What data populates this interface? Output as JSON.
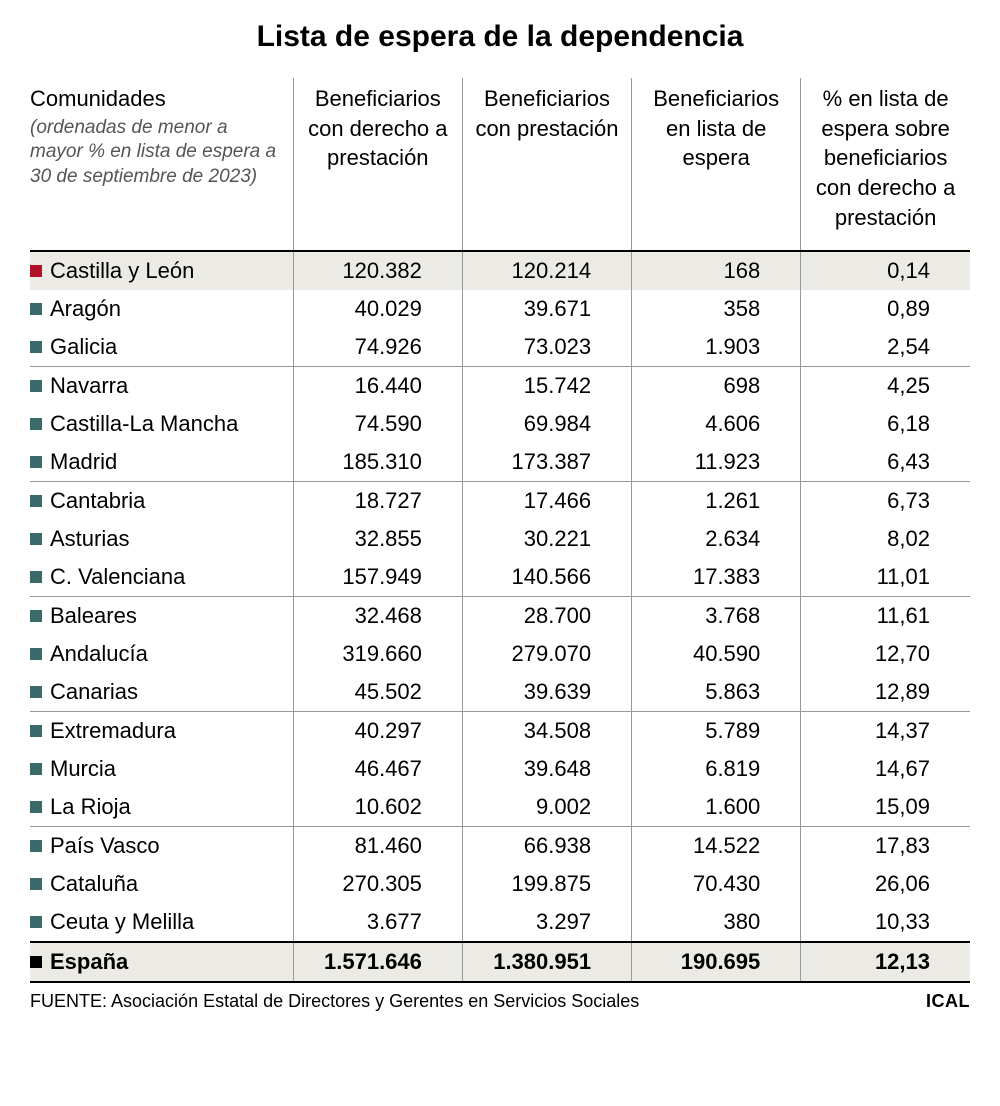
{
  "title": "Lista de espera de la dependencia",
  "columns": {
    "c0_title": "Comunidades",
    "c0_sub": "(ordenadas de menor a mayor % en lista de espera a 30 de septiembre de 2023)",
    "c1": "Beneficiarios con derecho a prestación",
    "c2": "Beneficiarios con prestación",
    "c3": "Beneficiarios en lista de espera",
    "c4": "% en lista de espera sobre beneficiarios con derecho a prestación"
  },
  "marker_colors": {
    "highlight": "#b01028",
    "normal": "#3a6a6a",
    "total": "#000000"
  },
  "rows": [
    {
      "name": "Castilla y León",
      "v1": "120.382",
      "v2": "120.214",
      "v3": "168",
      "v4": "0,14",
      "hl": true,
      "sep": false
    },
    {
      "name": "Aragón",
      "v1": "40.029",
      "v2": "39.671",
      "v3": "358",
      "v4": "0,89",
      "hl": false,
      "sep": false
    },
    {
      "name": "Galicia",
      "v1": "74.926",
      "v2": "73.023",
      "v3": "1.903",
      "v4": "2,54",
      "hl": false,
      "sep": false
    },
    {
      "name": "Navarra",
      "v1": "16.440",
      "v2": "15.742",
      "v3": "698",
      "v4": "4,25",
      "hl": false,
      "sep": true
    },
    {
      "name": "Castilla-La Mancha",
      "v1": "74.590",
      "v2": "69.984",
      "v3": "4.606",
      "v4": "6,18",
      "hl": false,
      "sep": false
    },
    {
      "name": "Madrid",
      "v1": "185.310",
      "v2": "173.387",
      "v3": "11.923",
      "v4": "6,43",
      "hl": false,
      "sep": false
    },
    {
      "name": "Cantabria",
      "v1": "18.727",
      "v2": "17.466",
      "v3": "1.261",
      "v4": "6,73",
      "hl": false,
      "sep": true
    },
    {
      "name": "Asturias",
      "v1": "32.855",
      "v2": "30.221",
      "v3": "2.634",
      "v4": "8,02",
      "hl": false,
      "sep": false
    },
    {
      "name": "C. Valenciana",
      "v1": "157.949",
      "v2": "140.566",
      "v3": "17.383",
      "v4": "11,01",
      "hl": false,
      "sep": false
    },
    {
      "name": "Baleares",
      "v1": "32.468",
      "v2": "28.700",
      "v3": "3.768",
      "v4": "11,61",
      "hl": false,
      "sep": true
    },
    {
      "name": "Andalucía",
      "v1": "319.660",
      "v2": "279.070",
      "v3": "40.590",
      "v4": "12,70",
      "hl": false,
      "sep": false
    },
    {
      "name": "Canarias",
      "v1": "45.502",
      "v2": "39.639",
      "v3": "5.863",
      "v4": "12,89",
      "hl": false,
      "sep": false
    },
    {
      "name": "Extremadura",
      "v1": "40.297",
      "v2": "34.508",
      "v3": "5.789",
      "v4": "14,37",
      "hl": false,
      "sep": true
    },
    {
      "name": "Murcia",
      "v1": "46.467",
      "v2": "39.648",
      "v3": "6.819",
      "v4": "14,67",
      "hl": false,
      "sep": false
    },
    {
      "name": "La Rioja",
      "v1": "10.602",
      "v2": "9.002",
      "v3": "1.600",
      "v4": "15,09",
      "hl": false,
      "sep": false
    },
    {
      "name": "País Vasco",
      "v1": "81.460",
      "v2": "66.938",
      "v3": "14.522",
      "v4": "17,83",
      "hl": false,
      "sep": true
    },
    {
      "name": "Cataluña",
      "v1": "270.305",
      "v2": "199.875",
      "v3": "70.430",
      "v4": "26,06",
      "hl": false,
      "sep": false
    },
    {
      "name": "Ceuta y Melilla",
      "v1": "3.677",
      "v2": "3.297",
      "v3": "380",
      "v4": "10,33",
      "hl": false,
      "sep": false
    }
  ],
  "total": {
    "name": "España",
    "v1": "1.571.646",
    "v2": "1.380.951",
    "v3": "190.695",
    "v4": "12,13"
  },
  "footer": {
    "source_label": "FUENTE:",
    "source_text": "Asociación Estatal de Directores y Gerentes en Servicios Sociales",
    "credit": "ICAL"
  }
}
